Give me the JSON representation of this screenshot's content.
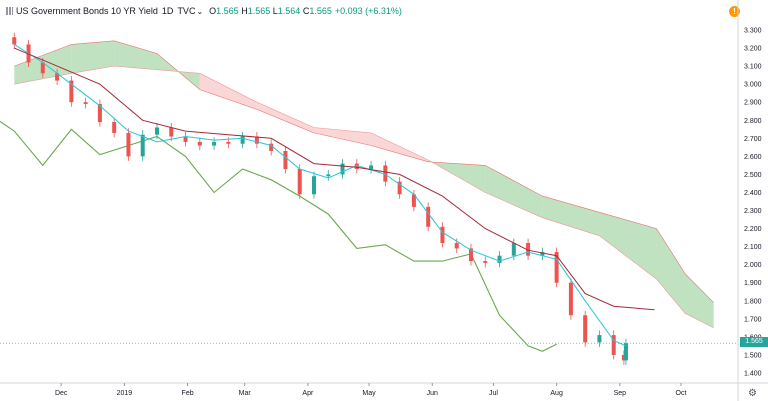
{
  "legend": {
    "title": "US Government Bonds 10 YR Yield",
    "interval": "1D",
    "exchange": "TVC",
    "open_label": "O",
    "open_value": "1.565",
    "high_label": "H",
    "high_value": "1.565",
    "low_label": "L",
    "low_value": "1.564",
    "close_label": "C",
    "close_value": "1.565",
    "change": "+0.093 (+6.31%)"
  },
  "price_tag": "1.565",
  "alert_icon_glyph": "!",
  "colors": {
    "up": "#26a69a",
    "down": "#ef5350",
    "tenkan": "#26c6da",
    "kijun": "#a52a3a",
    "lagging": "#6aa84f",
    "cloud_bullish": "#a5d6a7",
    "cloud_bearish": "#f8c4c4",
    "price_tag": "#26a69a"
  },
  "chart_data": {
    "type": "candlestick",
    "title": "US Government Bonds 10 YR Yield",
    "indicator": "Ichimoku Cloud",
    "x_ticks": [
      "Dec",
      "2019",
      "Feb",
      "Mar",
      "Apr",
      "May",
      "Jun",
      "Jul",
      "Aug",
      "Sep",
      "Oct"
    ],
    "y_ticks": [
      "3.300",
      "3.200",
      "3.100",
      "3.000",
      "2.900",
      "2.800",
      "2.700",
      "2.600",
      "2.500",
      "2.400",
      "2.300",
      "2.200",
      "2.100",
      "2.000",
      "1.900",
      "1.800",
      "1.700",
      "1.600",
      "1.500",
      "1.400"
    ],
    "ylim": [
      1.36,
      3.38
    ],
    "grid": true,
    "last_close": 1.565,
    "close_series": [
      {
        "x": "2018-11-08",
        "y": 3.22
      },
      {
        "x": "2018-11-15",
        "y": 3.12
      },
      {
        "x": "2018-11-22",
        "y": 3.06
      },
      {
        "x": "2018-11-29",
        "y": 3.02
      },
      {
        "x": "2018-12-06",
        "y": 2.9
      },
      {
        "x": "2018-12-13",
        "y": 2.89
      },
      {
        "x": "2018-12-20",
        "y": 2.79
      },
      {
        "x": "2018-12-27",
        "y": 2.73
      },
      {
        "x": "2019-01-03",
        "y": 2.6
      },
      {
        "x": "2019-01-10",
        "y": 2.72
      },
      {
        "x": "2019-01-17",
        "y": 2.76
      },
      {
        "x": "2019-01-24",
        "y": 2.71
      },
      {
        "x": "2019-01-31",
        "y": 2.68
      },
      {
        "x": "2019-02-07",
        "y": 2.66
      },
      {
        "x": "2019-02-14",
        "y": 2.68
      },
      {
        "x": "2019-02-21",
        "y": 2.67
      },
      {
        "x": "2019-02-28",
        "y": 2.71
      },
      {
        "x": "2019-03-07",
        "y": 2.67
      },
      {
        "x": "2019-03-14",
        "y": 2.63
      },
      {
        "x": "2019-03-21",
        "y": 2.53
      },
      {
        "x": "2019-03-28",
        "y": 2.39
      },
      {
        "x": "2019-04-04",
        "y": 2.49
      },
      {
        "x": "2019-04-11",
        "y": 2.5
      },
      {
        "x": "2019-04-18",
        "y": 2.56
      },
      {
        "x": "2019-04-25",
        "y": 2.53
      },
      {
        "x": "2019-05-02",
        "y": 2.55
      },
      {
        "x": "2019-05-09",
        "y": 2.46
      },
      {
        "x": "2019-05-16",
        "y": 2.39
      },
      {
        "x": "2019-05-23",
        "y": 2.32
      },
      {
        "x": "2019-05-30",
        "y": 2.21
      },
      {
        "x": "2019-06-06",
        "y": 2.12
      },
      {
        "x": "2019-06-13",
        "y": 2.09
      },
      {
        "x": "2019-06-20",
        "y": 2.02
      },
      {
        "x": "2019-06-27",
        "y": 2.01
      },
      {
        "x": "2019-07-04",
        "y": 2.05
      },
      {
        "x": "2019-07-11",
        "y": 2.12
      },
      {
        "x": "2019-07-18",
        "y": 2.05
      },
      {
        "x": "2019-07-25",
        "y": 2.07
      },
      {
        "x": "2019-08-01",
        "y": 1.9
      },
      {
        "x": "2019-08-08",
        "y": 1.72
      },
      {
        "x": "2019-08-15",
        "y": 1.57
      },
      {
        "x": "2019-08-22",
        "y": 1.61
      },
      {
        "x": "2019-08-29",
        "y": 1.5
      },
      {
        "x": "2019-09-03",
        "y": 1.47
      },
      {
        "x": "2019-09-04",
        "y": 1.565
      }
    ],
    "tenkan_sen": [
      {
        "x": "2018-11-08",
        "y": 3.22
      },
      {
        "x": "2018-11-22",
        "y": 3.12
      },
      {
        "x": "2018-12-06",
        "y": 3.0
      },
      {
        "x": "2018-12-20",
        "y": 2.88
      },
      {
        "x": "2019-01-03",
        "y": 2.74
      },
      {
        "x": "2019-01-17",
        "y": 2.68
      },
      {
        "x": "2019-01-31",
        "y": 2.71
      },
      {
        "x": "2019-02-14",
        "y": 2.69
      },
      {
        "x": "2019-02-28",
        "y": 2.7
      },
      {
        "x": "2019-03-14",
        "y": 2.66
      },
      {
        "x": "2019-03-28",
        "y": 2.53
      },
      {
        "x": "2019-04-11",
        "y": 2.48
      },
      {
        "x": "2019-04-25",
        "y": 2.55
      },
      {
        "x": "2019-05-09",
        "y": 2.5
      },
      {
        "x": "2019-05-23",
        "y": 2.39
      },
      {
        "x": "2019-06-06",
        "y": 2.18
      },
      {
        "x": "2019-06-20",
        "y": 2.08
      },
      {
        "x": "2019-07-04",
        "y": 2.02
      },
      {
        "x": "2019-07-18",
        "y": 2.07
      },
      {
        "x": "2019-08-01",
        "y": 2.03
      },
      {
        "x": "2019-08-15",
        "y": 1.8
      },
      {
        "x": "2019-08-29",
        "y": 1.58
      },
      {
        "x": "2019-09-04",
        "y": 1.55
      }
    ],
    "kijun_sen": [
      {
        "x": "2018-11-08",
        "y": 3.2
      },
      {
        "x": "2018-11-29",
        "y": 3.1
      },
      {
        "x": "2018-12-20",
        "y": 3.0
      },
      {
        "x": "2019-01-10",
        "y": 2.8
      },
      {
        "x": "2019-01-31",
        "y": 2.74
      },
      {
        "x": "2019-02-21",
        "y": 2.72
      },
      {
        "x": "2019-03-14",
        "y": 2.7
      },
      {
        "x": "2019-04-04",
        "y": 2.56
      },
      {
        "x": "2019-04-25",
        "y": 2.54
      },
      {
        "x": "2019-05-16",
        "y": 2.5
      },
      {
        "x": "2019-06-06",
        "y": 2.38
      },
      {
        "x": "2019-06-27",
        "y": 2.2
      },
      {
        "x": "2019-07-18",
        "y": 2.08
      },
      {
        "x": "2019-08-01",
        "y": 2.05
      },
      {
        "x": "2019-08-15",
        "y": 1.84
      },
      {
        "x": "2019-08-29",
        "y": 1.77
      },
      {
        "x": "2019-09-18",
        "y": 1.75
      }
    ],
    "chikou_span": [
      {
        "x": "2018-10-18",
        "y": 2.9
      },
      {
        "x": "2018-11-08",
        "y": 2.74
      },
      {
        "x": "2018-11-22",
        "y": 2.55
      },
      {
        "x": "2018-12-06",
        "y": 2.75
      },
      {
        "x": "2018-12-20",
        "y": 2.61
      },
      {
        "x": "2019-01-03",
        "y": 2.66
      },
      {
        "x": "2019-01-17",
        "y": 2.71
      },
      {
        "x": "2019-01-31",
        "y": 2.6
      },
      {
        "x": "2019-02-14",
        "y": 2.4
      },
      {
        "x": "2019-02-28",
        "y": 2.53
      },
      {
        "x": "2019-03-14",
        "y": 2.47
      },
      {
        "x": "2019-03-28",
        "y": 2.38
      },
      {
        "x": "2019-04-11",
        "y": 2.28
      },
      {
        "x": "2019-04-25",
        "y": 2.09
      },
      {
        "x": "2019-05-09",
        "y": 2.11
      },
      {
        "x": "2019-05-23",
        "y": 2.02
      },
      {
        "x": "2019-06-06",
        "y": 2.02
      },
      {
        "x": "2019-06-20",
        "y": 2.06
      },
      {
        "x": "2019-07-04",
        "y": 1.72
      },
      {
        "x": "2019-07-18",
        "y": 1.55
      },
      {
        "x": "2019-07-25",
        "y": 1.52
      },
      {
        "x": "2019-08-01",
        "y": 1.56
      }
    ],
    "cloud": {
      "span_a": [
        {
          "x": "2018-11-08",
          "y": 3.1
        },
        {
          "x": "2018-12-06",
          "y": 3.22
        },
        {
          "x": "2018-12-27",
          "y": 3.24
        },
        {
          "x": "2019-01-17",
          "y": 3.17
        },
        {
          "x": "2019-02-07",
          "y": 2.97
        },
        {
          "x": "2019-03-07",
          "y": 2.86
        },
        {
          "x": "2019-04-04",
          "y": 2.73
        },
        {
          "x": "2019-05-02",
          "y": 2.66
        },
        {
          "x": "2019-05-30",
          "y": 2.57
        },
        {
          "x": "2019-06-27",
          "y": 2.55
        },
        {
          "x": "2019-07-25",
          "y": 2.38
        },
        {
          "x": "2019-08-22",
          "y": 2.29
        },
        {
          "x": "2019-09-19",
          "y": 2.2
        },
        {
          "x": "2019-10-03",
          "y": 1.95
        },
        {
          "x": "2019-10-17",
          "y": 1.79
        }
      ],
      "span_b": [
        {
          "x": "2018-11-08",
          "y": 3.0
        },
        {
          "x": "2018-12-06",
          "y": 3.06
        },
        {
          "x": "2018-12-27",
          "y": 3.1
        },
        {
          "x": "2019-01-17",
          "y": 3.08
        },
        {
          "x": "2019-02-07",
          "y": 3.06
        },
        {
          "x": "2019-03-07",
          "y": 2.9
        },
        {
          "x": "2019-04-04",
          "y": 2.76
        },
        {
          "x": "2019-05-02",
          "y": 2.73
        },
        {
          "x": "2019-05-30",
          "y": 2.58
        },
        {
          "x": "2019-06-27",
          "y": 2.4
        },
        {
          "x": "2019-07-25",
          "y": 2.26
        },
        {
          "x": "2019-08-22",
          "y": 2.16
        },
        {
          "x": "2019-09-19",
          "y": 1.92
        },
        {
          "x": "2019-10-03",
          "y": 1.73
        },
        {
          "x": "2019-10-17",
          "y": 1.65
        }
      ]
    }
  }
}
